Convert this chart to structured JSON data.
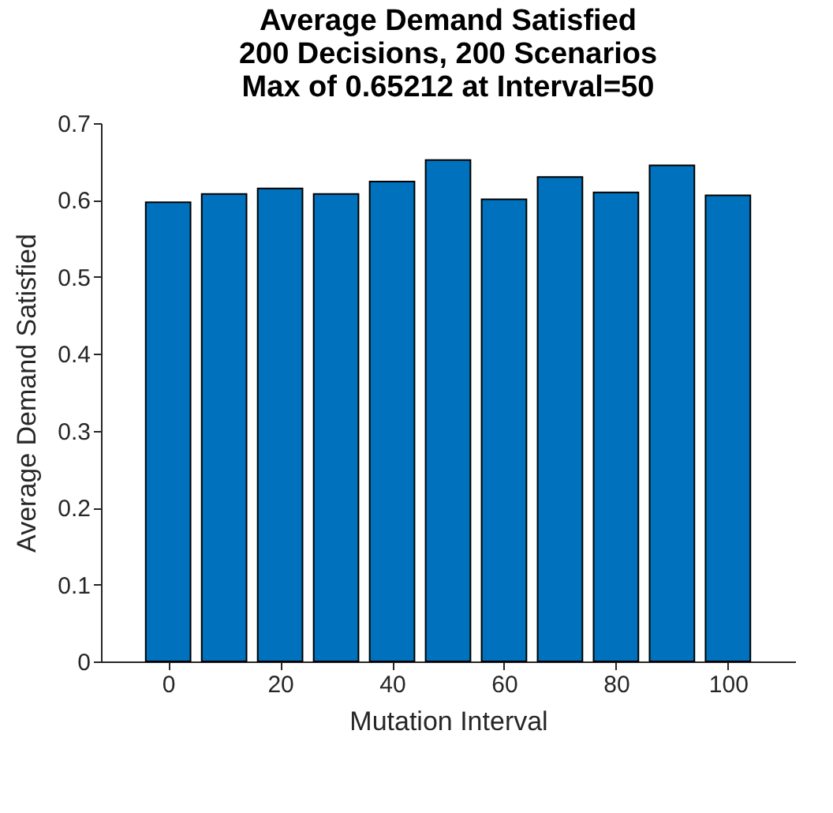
{
  "chart_data": {
    "type": "bar",
    "title": [
      "Average Demand Satisfied",
      "200 Decisions, 200 Scenarios",
      "Max of 0.65212 at Interval=50"
    ],
    "xlabel": "Mutation Interval",
    "ylabel": "Average Demand Satisfied",
    "x": [
      0,
      10,
      20,
      30,
      40,
      50,
      60,
      70,
      80,
      90,
      100
    ],
    "series": [
      {
        "color": "#0072bd",
        "values": [
          0.597,
          0.608,
          0.615,
          0.608,
          0.624,
          0.652,
          0.601,
          0.63,
          0.61,
          0.645,
          0.606
        ]
      }
    ],
    "xlim": [
      -12,
      112
    ],
    "xticks": [
      0,
      20,
      40,
      60,
      80,
      100
    ],
    "ylim": [
      0,
      0.7
    ],
    "yticks": [
      0,
      0.1,
      0.2,
      0.3,
      0.4,
      0.5,
      0.6,
      0.7
    ],
    "grid": false,
    "legend": false
  }
}
